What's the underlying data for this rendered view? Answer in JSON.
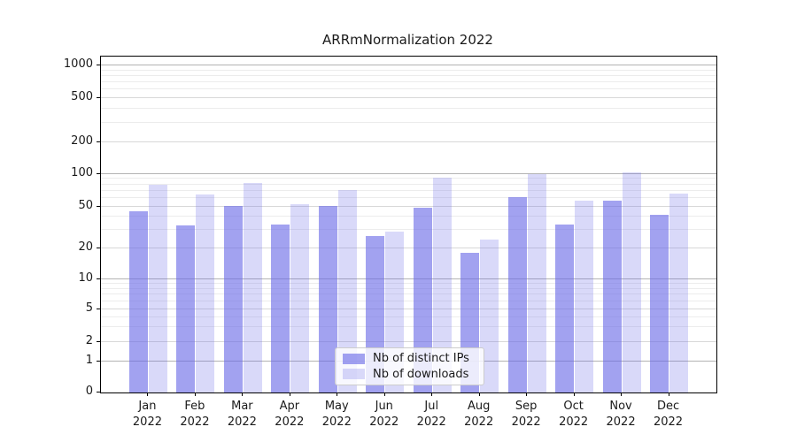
{
  "chart_data": {
    "type": "bar",
    "title": "ARRmNormalization 2022",
    "categories": [
      "Jan",
      "Feb",
      "Mar",
      "Apr",
      "May",
      "Jun",
      "Jul",
      "Aug",
      "Sep",
      "Oct",
      "Nov",
      "Dec"
    ],
    "category_year": "2022",
    "series": [
      {
        "name": "Nb of distinct IPs",
        "color": "rgba(105,105,230,0.62)",
        "values": [
          45,
          33,
          51,
          34,
          51,
          26,
          49,
          18,
          61,
          34,
          57,
          42
        ]
      },
      {
        "name": "Nb of downloads",
        "color": "rgba(105,105,230,0.25)",
        "values": [
          80,
          65,
          83,
          53,
          71,
          29,
          92,
          24,
          99,
          57,
          103,
          66
        ]
      }
    ],
    "yscale": "symlog",
    "yticks": [
      0,
      1,
      2,
      5,
      10,
      20,
      50,
      100,
      200,
      500,
      1000
    ],
    "ylim": [
      0,
      1200
    ],
    "grid": true,
    "legend_position": "lower center"
  },
  "colors": {
    "bar_base": "#6969e6",
    "grid_decade": "#b3b3b3",
    "grid_sub": "#d8d8d8",
    "grid_minor": "#ececec",
    "spine": "#000000",
    "legend_border": "#cccccc",
    "text": "#1a1a1a"
  }
}
